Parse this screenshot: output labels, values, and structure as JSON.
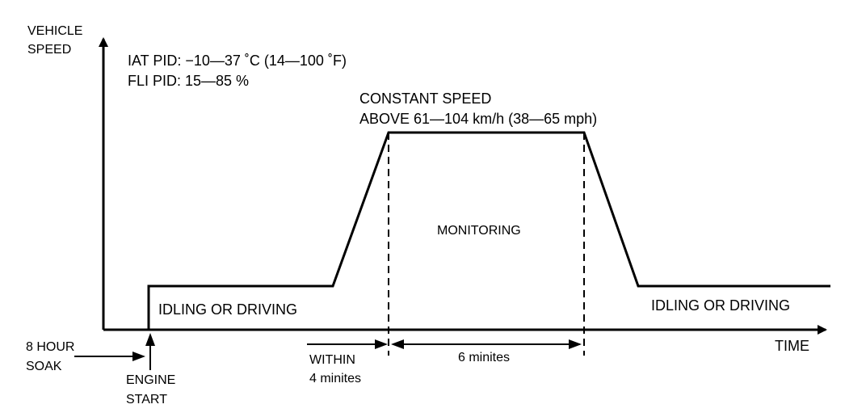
{
  "axes": {
    "y_label_line1": "VEHICLE",
    "y_label_line2": "SPEED",
    "x_label": "TIME"
  },
  "conditions": {
    "iat": "IAT PID: −10—37 ˚C (14—100 ˚F)",
    "fli": "FLI PID: 15—85 %"
  },
  "constant_speed": {
    "line1": "CONSTANT SPEED",
    "line2": "ABOVE 61—104 km/h (38—65 mph)"
  },
  "monitoring": "MONITORING",
  "idle_left": "IDLING OR DRIVING",
  "idle_right": "IDLING OR DRIVING",
  "soak": {
    "line1": "8 HOUR",
    "line2": "SOAK"
  },
  "engine_start": {
    "line1": "ENGINE",
    "line2": "START"
  },
  "within": {
    "line1": "WITHIN",
    "line2": "4 minites"
  },
  "duration": "6 minites"
}
